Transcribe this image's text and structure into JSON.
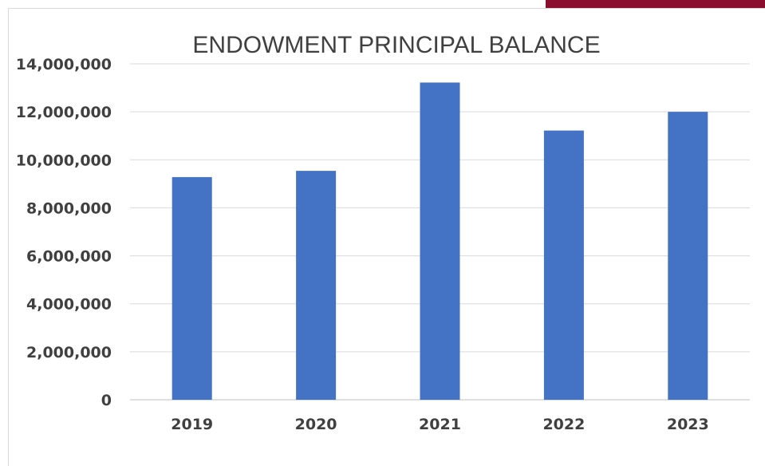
{
  "colors": {
    "accent": "#8b0e2e",
    "bar": "#4472c4",
    "grid": "#d9d9d9",
    "text": "#404040"
  },
  "chart_data": {
    "type": "bar",
    "title": "ENDOWMENT PRINCIPAL BALANCE",
    "xlabel": "",
    "ylabel": "",
    "categories": [
      "2019",
      "2020",
      "2021",
      "2022",
      "2023"
    ],
    "values": [
      9280000,
      9540000,
      13220000,
      11220000,
      12000000
    ],
    "ylim": [
      0,
      14000000
    ],
    "yticks": [
      0,
      2000000,
      4000000,
      6000000,
      8000000,
      10000000,
      12000000,
      14000000
    ],
    "ytick_labels": [
      "0",
      "2,000,000",
      "4,000,000",
      "6,000,000",
      "8,000,000",
      "10,000,000",
      "12,000,000",
      "14,000,000"
    ],
    "grid": true,
    "legend": "none"
  }
}
